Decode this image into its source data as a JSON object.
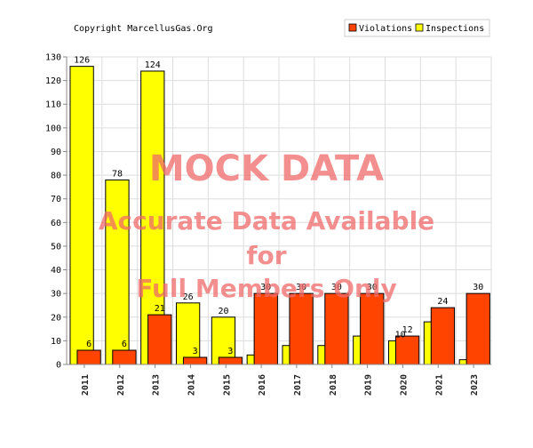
{
  "copyright": "Copyright MarcellusGas.Org",
  "watermark": {
    "line1": "MOCK DATA",
    "line2": "Accurate Data Available",
    "line3": "for",
    "line4": "Full Members Only"
  },
  "colors": {
    "violations": "#ff4400",
    "inspections": "#ffff00",
    "outline": "#000000",
    "grid": "#dddddd"
  },
  "chart_data": {
    "type": "bar",
    "categories": [
      "2011",
      "2012",
      "2013",
      "2014",
      "2015",
      "2016",
      "2017",
      "2018",
      "2019",
      "2020",
      "2021",
      "2023"
    ],
    "series": [
      {
        "name": "Violations",
        "values": [
          6,
          6,
          21,
          3,
          3,
          30,
          30,
          30,
          30,
          12,
          24,
          30
        ],
        "labels": [
          "6",
          "6",
          "21",
          "3",
          "3",
          "30",
          "30",
          "30",
          "30",
          "12",
          "24",
          "30"
        ]
      },
      {
        "name": "Inspections",
        "values": [
          126,
          78,
          124,
          26,
          20,
          4,
          8,
          8,
          12,
          10,
          18,
          2
        ],
        "labels": [
          "126",
          "78",
          "124",
          "26",
          "20",
          "",
          "",
          "",
          "",
          "10",
          "",
          ""
        ]
      }
    ],
    "ylim": [
      0,
      130
    ],
    "yticks": [
      0,
      10,
      20,
      30,
      40,
      50,
      60,
      70,
      80,
      90,
      100,
      110,
      120,
      130
    ],
    "grid": true,
    "legend": "top-right"
  }
}
